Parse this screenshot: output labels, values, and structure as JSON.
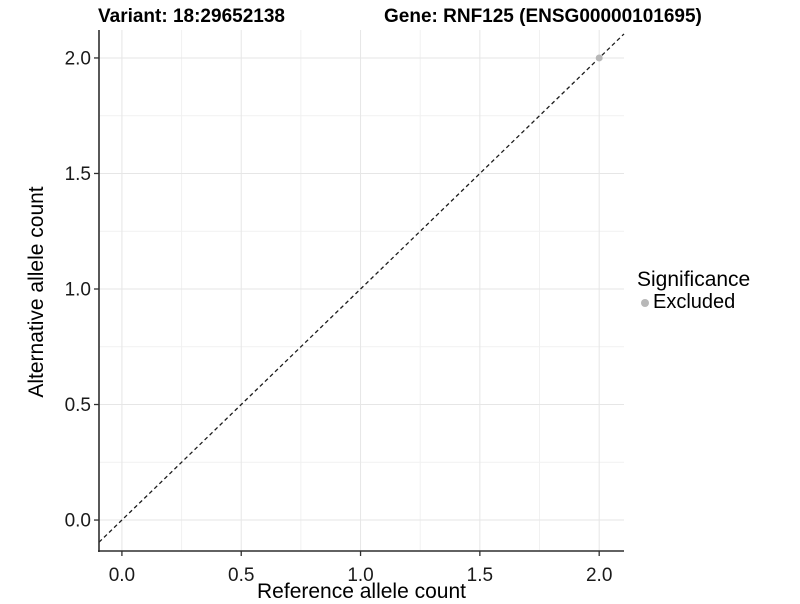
{
  "titles": {
    "left": "Variant: 18:29652138",
    "right": "Gene: RNF125 (ENSG00000101695)"
  },
  "chart_data": {
    "type": "scatter",
    "title": "Variant: 18:29652138   Gene: RNF125 (ENSG00000101695)",
    "xlabel": "Reference allele count",
    "ylabel": "Alternative allele count",
    "xlim": [
      -0.096,
      2.104
    ],
    "ylim": [
      -0.134,
      2.121
    ],
    "xticks": {
      "values": [
        0,
        0.5,
        1,
        1.5,
        2
      ],
      "labels": [
        "0.0",
        "0.5",
        "1.0",
        "1.5",
        "2.0"
      ]
    },
    "yticks": {
      "values": [
        0,
        0.5,
        1,
        1.5,
        2
      ],
      "labels": [
        "0.0",
        "0.5",
        "1.0",
        "1.5",
        "2.0"
      ]
    },
    "minor_ticks_x": [
      0.25,
      0.75,
      1.25,
      1.75
    ],
    "minor_ticks_y": [
      0.25,
      0.75,
      1.25,
      1.75
    ],
    "grid": true,
    "legend_position": "right",
    "reference_line": {
      "type": "identity",
      "style": "dashed",
      "equation": "y = x"
    },
    "series": [
      {
        "name": "Excluded",
        "color": "#b8b8b8",
        "points": [
          [
            2.0,
            2.0
          ]
        ]
      }
    ]
  },
  "legend": {
    "title": "Significance",
    "entries": [
      {
        "label": "Excluded",
        "color": "#b8b8b8"
      }
    ]
  },
  "colors": {
    "background": "#ffffff",
    "text": "#000000",
    "axis": "#2f2f2f",
    "tick_label": "#1a1a1a",
    "grid_major": "#e6e6e6",
    "grid_minor": "#f1f1f1",
    "ref_line": "#1c1c1c",
    "point": "#b8b8b8"
  }
}
